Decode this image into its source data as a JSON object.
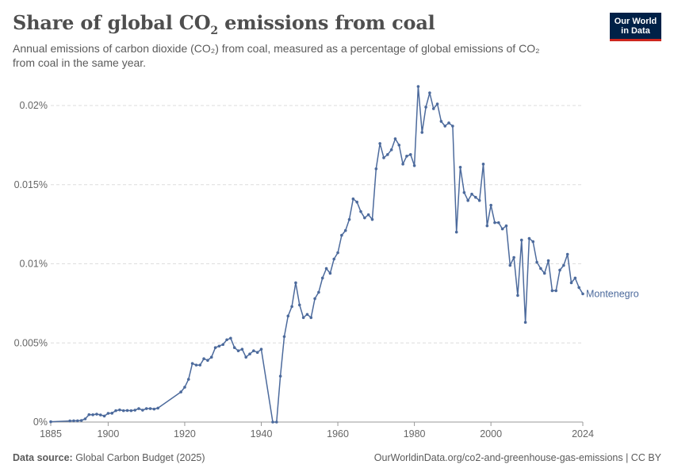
{
  "header": {
    "title_main": "Share of global CO",
    "title_sub": "2",
    "title_rest": " emissions from coal",
    "subtitle_line1": "Annual emissions of carbon dioxide (CO₂) from coal, measured as a percentage of global emissions of CO₂",
    "subtitle_line2": "from coal in the same year."
  },
  "logo": {
    "line1": "Our World",
    "line2": "in Data"
  },
  "footer": {
    "source_label": "Data source:",
    "source_value": " Global Carbon Budget (2025)",
    "url": "OurWorldinData.org/co2-and-greenhouse-gas-emissions",
    "license": " | CC BY"
  },
  "colors": {
    "series": "#4c6a9c",
    "grid": "#dddddd",
    "text": "#5b5b5b",
    "logo_bg": "#002147",
    "logo_accent": "#ce261e"
  },
  "chart_data": {
    "type": "line",
    "ylabel": "",
    "xlabel": "",
    "xlim": [
      1885,
      2024
    ],
    "ylim": [
      0,
      0.02
    ],
    "y_ticks": [
      0,
      0.005,
      0.01,
      0.015,
      0.02
    ],
    "y_tick_labels": [
      "0%",
      "0.005%",
      "0.01%",
      "0.015%",
      "0.02%"
    ],
    "x_ticks": [
      1885,
      1900,
      1920,
      1940,
      1960,
      1980,
      2000,
      2024
    ],
    "x_tick_labels": [
      "1885",
      "1900",
      "1920",
      "1940",
      "1960",
      "1980",
      "2000",
      "2024"
    ],
    "grid": "horizontal-dashed",
    "series": [
      {
        "name": "Montenegro",
        "x": [
          1885,
          1890,
          1891,
          1892,
          1893,
          1894,
          1895,
          1896,
          1897,
          1898,
          1899,
          1900,
          1901,
          1902,
          1903,
          1904,
          1905,
          1906,
          1907,
          1908,
          1909,
          1910,
          1911,
          1912,
          1913,
          1919,
          1920,
          1921,
          1922,
          1923,
          1924,
          1925,
          1926,
          1927,
          1928,
          1929,
          1930,
          1931,
          1932,
          1933,
          1934,
          1935,
          1936,
          1937,
          1938,
          1939,
          1940,
          1943,
          1944,
          1945,
          1946,
          1947,
          1948,
          1949,
          1950,
          1951,
          1952,
          1953,
          1954,
          1955,
          1956,
          1957,
          1958,
          1959,
          1960,
          1961,
          1962,
          1963,
          1964,
          1965,
          1966,
          1967,
          1968,
          1969,
          1970,
          1971,
          1972,
          1973,
          1974,
          1975,
          1976,
          1977,
          1978,
          1979,
          1980,
          1981,
          1982,
          1983,
          1984,
          1985,
          1986,
          1987,
          1988,
          1989,
          1990,
          1991,
          1992,
          1993,
          1994,
          1995,
          1996,
          1997,
          1998,
          1999,
          2000,
          2001,
          2002,
          2003,
          2004,
          2005,
          2006,
          2007,
          2008,
          2009,
          2010,
          2011,
          2012,
          2013,
          2014,
          2015,
          2016,
          2017,
          2018,
          2019,
          2020,
          2021,
          2022,
          2023,
          2024
        ],
        "values": [
          2e-05,
          7e-05,
          8e-05,
          8e-05,
          0.0001,
          0.0002,
          0.00047,
          0.00046,
          0.0005,
          0.00045,
          0.00038,
          0.00055,
          0.00056,
          0.00072,
          0.00077,
          0.00072,
          0.00073,
          0.00072,
          0.00075,
          0.00085,
          0.00075,
          0.00085,
          0.00085,
          0.00082,
          0.00088,
          0.0019,
          0.0022,
          0.0027,
          0.0037,
          0.0036,
          0.0036,
          0.004,
          0.0039,
          0.0041,
          0.0047,
          0.0048,
          0.0049,
          0.0052,
          0.0053,
          0.0047,
          0.0045,
          0.0046,
          0.0041,
          0.0043,
          0.0045,
          0.0044,
          0.0046,
          0.0,
          0.0,
          0.0029,
          0.0054,
          0.0067,
          0.0073,
          0.0088,
          0.0074,
          0.0066,
          0.0068,
          0.0066,
          0.0078,
          0.0082,
          0.0091,
          0.0097,
          0.0094,
          0.0103,
          0.0107,
          0.0118,
          0.0121,
          0.0128,
          0.0141,
          0.0139,
          0.0133,
          0.0129,
          0.0131,
          0.0128,
          0.016,
          0.0176,
          0.0167,
          0.0169,
          0.0172,
          0.0179,
          0.0175,
          0.0163,
          0.0168,
          0.0169,
          0.0162,
          0.0212,
          0.0183,
          0.0199,
          0.0208,
          0.0198,
          0.0201,
          0.019,
          0.0187,
          0.0189,
          0.0187,
          0.012,
          0.0161,
          0.0145,
          0.014,
          0.0144,
          0.0142,
          0.014,
          0.0163,
          0.0124,
          0.0137,
          0.0126,
          0.0126,
          0.0122,
          0.0124,
          0.0099,
          0.0104,
          0.008,
          0.0115,
          0.0063,
          0.0116,
          0.0114,
          0.0101,
          0.0097,
          0.0094,
          0.0102,
          0.0083,
          0.0083,
          0.0096,
          0.0099,
          0.0106,
          0.0088,
          0.0091,
          0.0085,
          0.0081
        ]
      }
    ]
  }
}
